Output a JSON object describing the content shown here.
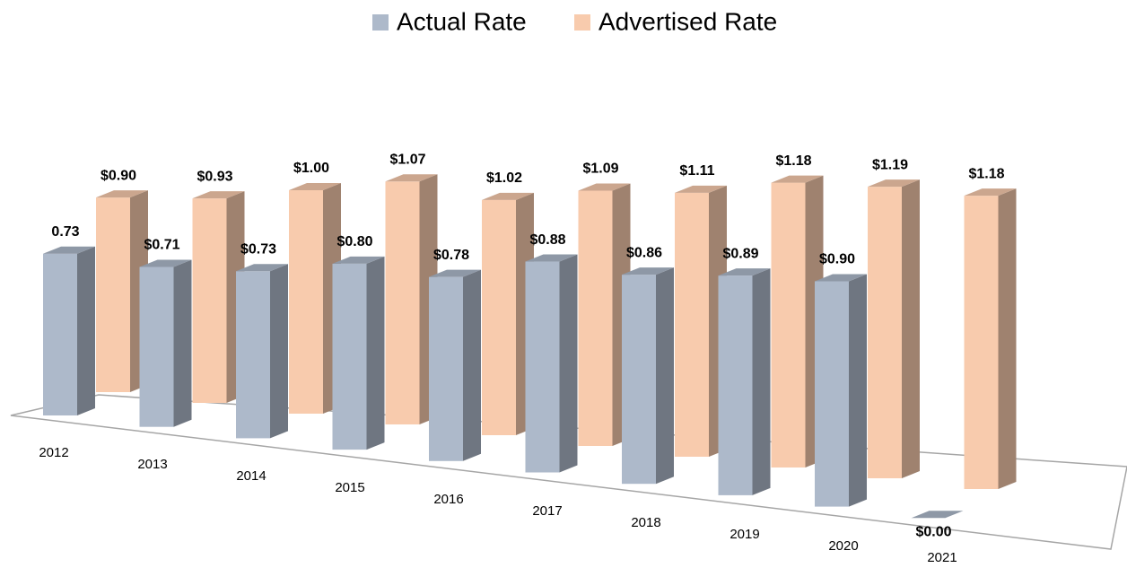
{
  "chart_data": {
    "type": "bar3d",
    "categories": [
      "2012",
      "2013",
      "2014",
      "2015",
      "2016",
      "2017",
      "2018",
      "2019",
      "2020",
      "2021"
    ],
    "series": [
      {
        "name": "Actual Rate",
        "color": "#adb9ca",
        "values": [
          0.73,
          0.71,
          0.73,
          0.8,
          0.78,
          0.88,
          0.86,
          0.89,
          0.9,
          0.0
        ],
        "value_labels": [
          "0.73",
          "$0.71",
          "$0.73",
          "$0.80",
          "$0.78",
          "$0.88",
          "$0.86",
          "$0.89",
          "$0.90",
          "$0.00"
        ]
      },
      {
        "name": "Advertised Rate",
        "color": "#f8cbad",
        "values": [
          0.9,
          0.93,
          1.0,
          1.07,
          1.02,
          1.09,
          1.11,
          1.18,
          1.19,
          1.18
        ],
        "value_labels": [
          "$0.90",
          "$0.93",
          "$1.00",
          "$1.07",
          "$1.02",
          "$1.09",
          "$1.11",
          "$1.18",
          "$1.19",
          "$1.18"
        ]
      }
    ],
    "legend": "top"
  }
}
